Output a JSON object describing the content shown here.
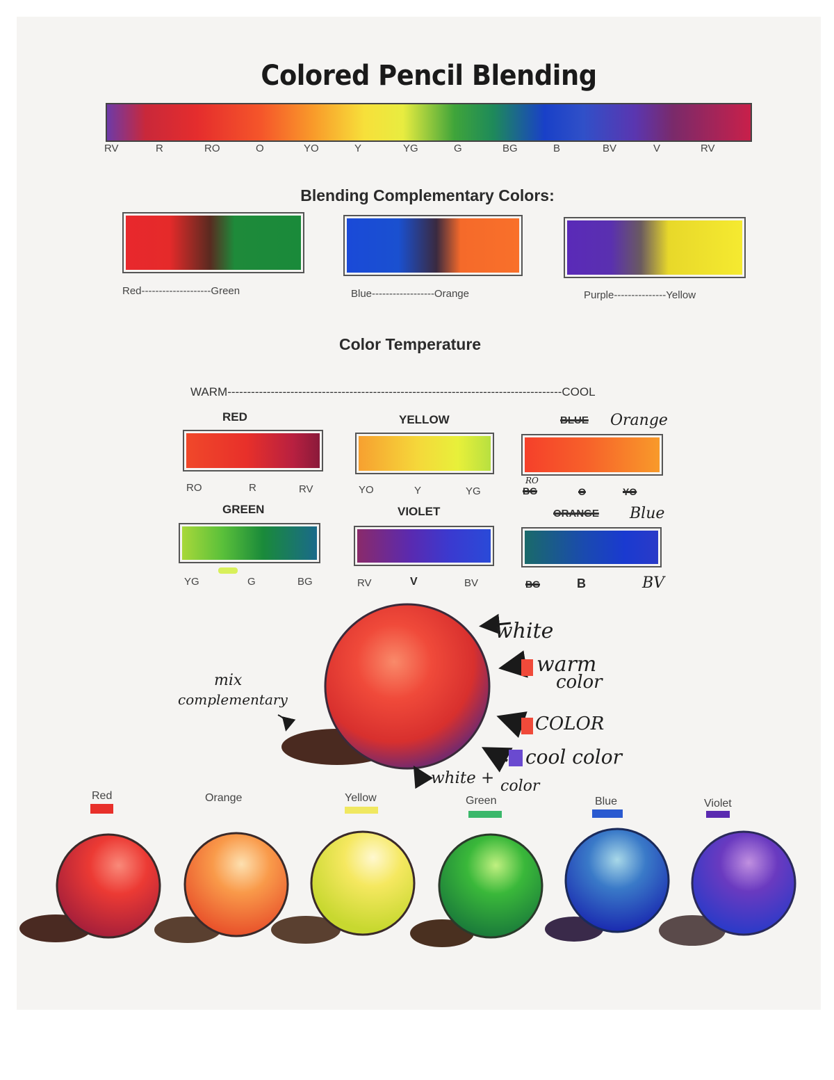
{
  "title": "Colored Pencil Blending",
  "spectrum": {
    "labels": [
      "RV",
      "R",
      "RO",
      "O",
      "YO",
      "Y",
      "YG",
      "G",
      "BG",
      "B",
      "BV",
      "V",
      "RV"
    ]
  },
  "complementary": {
    "heading": "Blending Complementary Colors:",
    "pairs": [
      {
        "label": "Red--------------------Green"
      },
      {
        "label": "Blue------------------Orange"
      },
      {
        "label": "Purple---------------Yellow"
      }
    ]
  },
  "temperature": {
    "heading": "Color Temperature",
    "scale": "WARM-------------------------------------------------------------------------------------COOL",
    "rows": [
      {
        "heading": "RED",
        "ticks": [
          "RO",
          "R",
          "RV"
        ]
      },
      {
        "heading": "YELLOW",
        "ticks": [
          "YO",
          "Y",
          "YG"
        ]
      },
      {
        "heading_struck": "BLUE",
        "heading_hand": "Orange",
        "ticks": [
          "RO",
          "BG",
          "O",
          "YO"
        ]
      },
      {
        "heading": "GREEN",
        "ticks": [
          "YG",
          "G",
          "BG"
        ]
      },
      {
        "heading": "VIOLET",
        "ticks": [
          "RV",
          "V",
          "BV"
        ]
      },
      {
        "heading_struck": "ORANGE",
        "heading_hand": "Blue",
        "ticks": [
          "BG",
          "B",
          "BV"
        ]
      }
    ]
  },
  "sphere_notes": {
    "white": "white",
    "warm_color": [
      "warm",
      "color"
    ],
    "color": "COLOR",
    "cool_color": "cool color",
    "white_color": [
      "white +",
      "color"
    ],
    "mix": [
      "mix",
      "complementary"
    ]
  },
  "spheres": [
    {
      "label": "Red"
    },
    {
      "label": "Orange"
    },
    {
      "label": "Yellow"
    },
    {
      "label": "Green"
    },
    {
      "label": "Blue"
    },
    {
      "label": "Violet"
    }
  ]
}
